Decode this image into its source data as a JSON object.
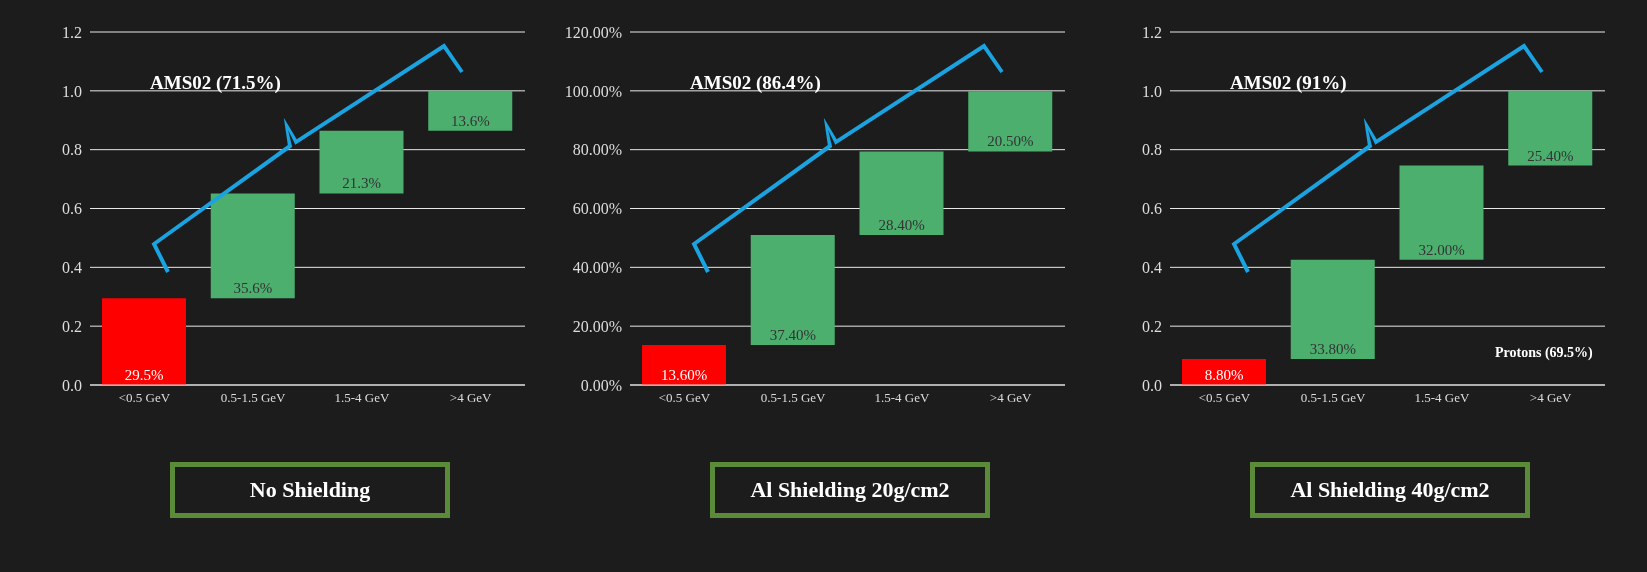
{
  "chart_data": [
    {
      "type": "bar",
      "title": "No Shielding",
      "categories": [
        "<0.5 GeV",
        "0.5-1.5 GeV",
        "1.5-4 GeV",
        ">4 GeV"
      ],
      "values": [
        0.295,
        0.356,
        0.213,
        0.136
      ],
      "base": [
        0,
        0.295,
        0.651,
        0.864
      ],
      "colors": [
        "#ff0000",
        "#4caf6e",
        "#4caf6e",
        "#4caf6e"
      ],
      "value_labels": [
        "29.5%",
        "35.6%",
        "21.3%",
        "13.6%"
      ],
      "ylim": [
        0,
        1.2
      ],
      "yticks": [
        {
          "value": 0,
          "label": "0.0"
        },
        {
          "value": 0.2,
          "label": "0.2"
        },
        {
          "value": 0.4,
          "label": "0.4"
        },
        {
          "value": 0.6,
          "label": "0.6"
        },
        {
          "value": 0.8,
          "label": "0.8"
        },
        {
          "value": 1,
          "label": "1.0"
        },
        {
          "value": 1.2,
          "label": "1.2"
        }
      ],
      "grid": "y",
      "annotations": [
        "AMS02 (71.5%)"
      ]
    },
    {
      "type": "bar",
      "title": "Al Shielding 20g/cm2",
      "categories": [
        "<0.5 GeV",
        "0.5-1.5 GeV",
        "1.5-4 GeV",
        ">4 GeV"
      ],
      "values": [
        13.6,
        37.4,
        28.4,
        20.5
      ],
      "base": [
        0,
        13.6,
        51,
        79.4
      ],
      "colors": [
        "#ff0000",
        "#4caf6e",
        "#4caf6e",
        "#4caf6e"
      ],
      "value_labels": [
        "13.60%",
        "37.40%",
        "28.40%",
        "20.50%"
      ],
      "ylim": [
        0,
        120
      ],
      "yticks": [
        {
          "value": 0,
          "label": "0.00%"
        },
        {
          "value": 20,
          "label": "20.00%"
        },
        {
          "value": 40,
          "label": "40.00%"
        },
        {
          "value": 60,
          "label": "60.00%"
        },
        {
          "value": 80,
          "label": "80.00%"
        },
        {
          "value": 100,
          "label": "100.00%"
        },
        {
          "value": 120,
          "label": "120.00%"
        }
      ],
      "grid": "y",
      "annotations": [
        "AMS02 (86.4%)"
      ]
    },
    {
      "type": "bar",
      "title": "Al Shielding 40g/cm2",
      "categories": [
        "<0.5 GeV",
        "0.5-1.5 GeV",
        "1.5-4 GeV",
        ">4 GeV"
      ],
      "values": [
        0.088,
        0.338,
        0.32,
        0.254
      ],
      "base": [
        0,
        0.088,
        0.426,
        0.746
      ],
      "colors": [
        "#ff0000",
        "#4caf6e",
        "#4caf6e",
        "#4caf6e"
      ],
      "value_labels": [
        "8.80%",
        "33.80%",
        "32.00%",
        "25.40%"
      ],
      "ylim": [
        0,
        1.2
      ],
      "yticks": [
        {
          "value": 0,
          "label": "0.0"
        },
        {
          "value": 0.2,
          "label": "0.2"
        },
        {
          "value": 0.4,
          "label": "0.4"
        },
        {
          "value": 0.6,
          "label": "0.6"
        },
        {
          "value": 0.8,
          "label": "0.8"
        },
        {
          "value": 1,
          "label": "1.0"
        },
        {
          "value": 1.2,
          "label": "1.2"
        }
      ],
      "grid": "y",
      "annotations": [
        "AMS02 (91%)",
        "Protons (69.5%)"
      ]
    }
  ]
}
